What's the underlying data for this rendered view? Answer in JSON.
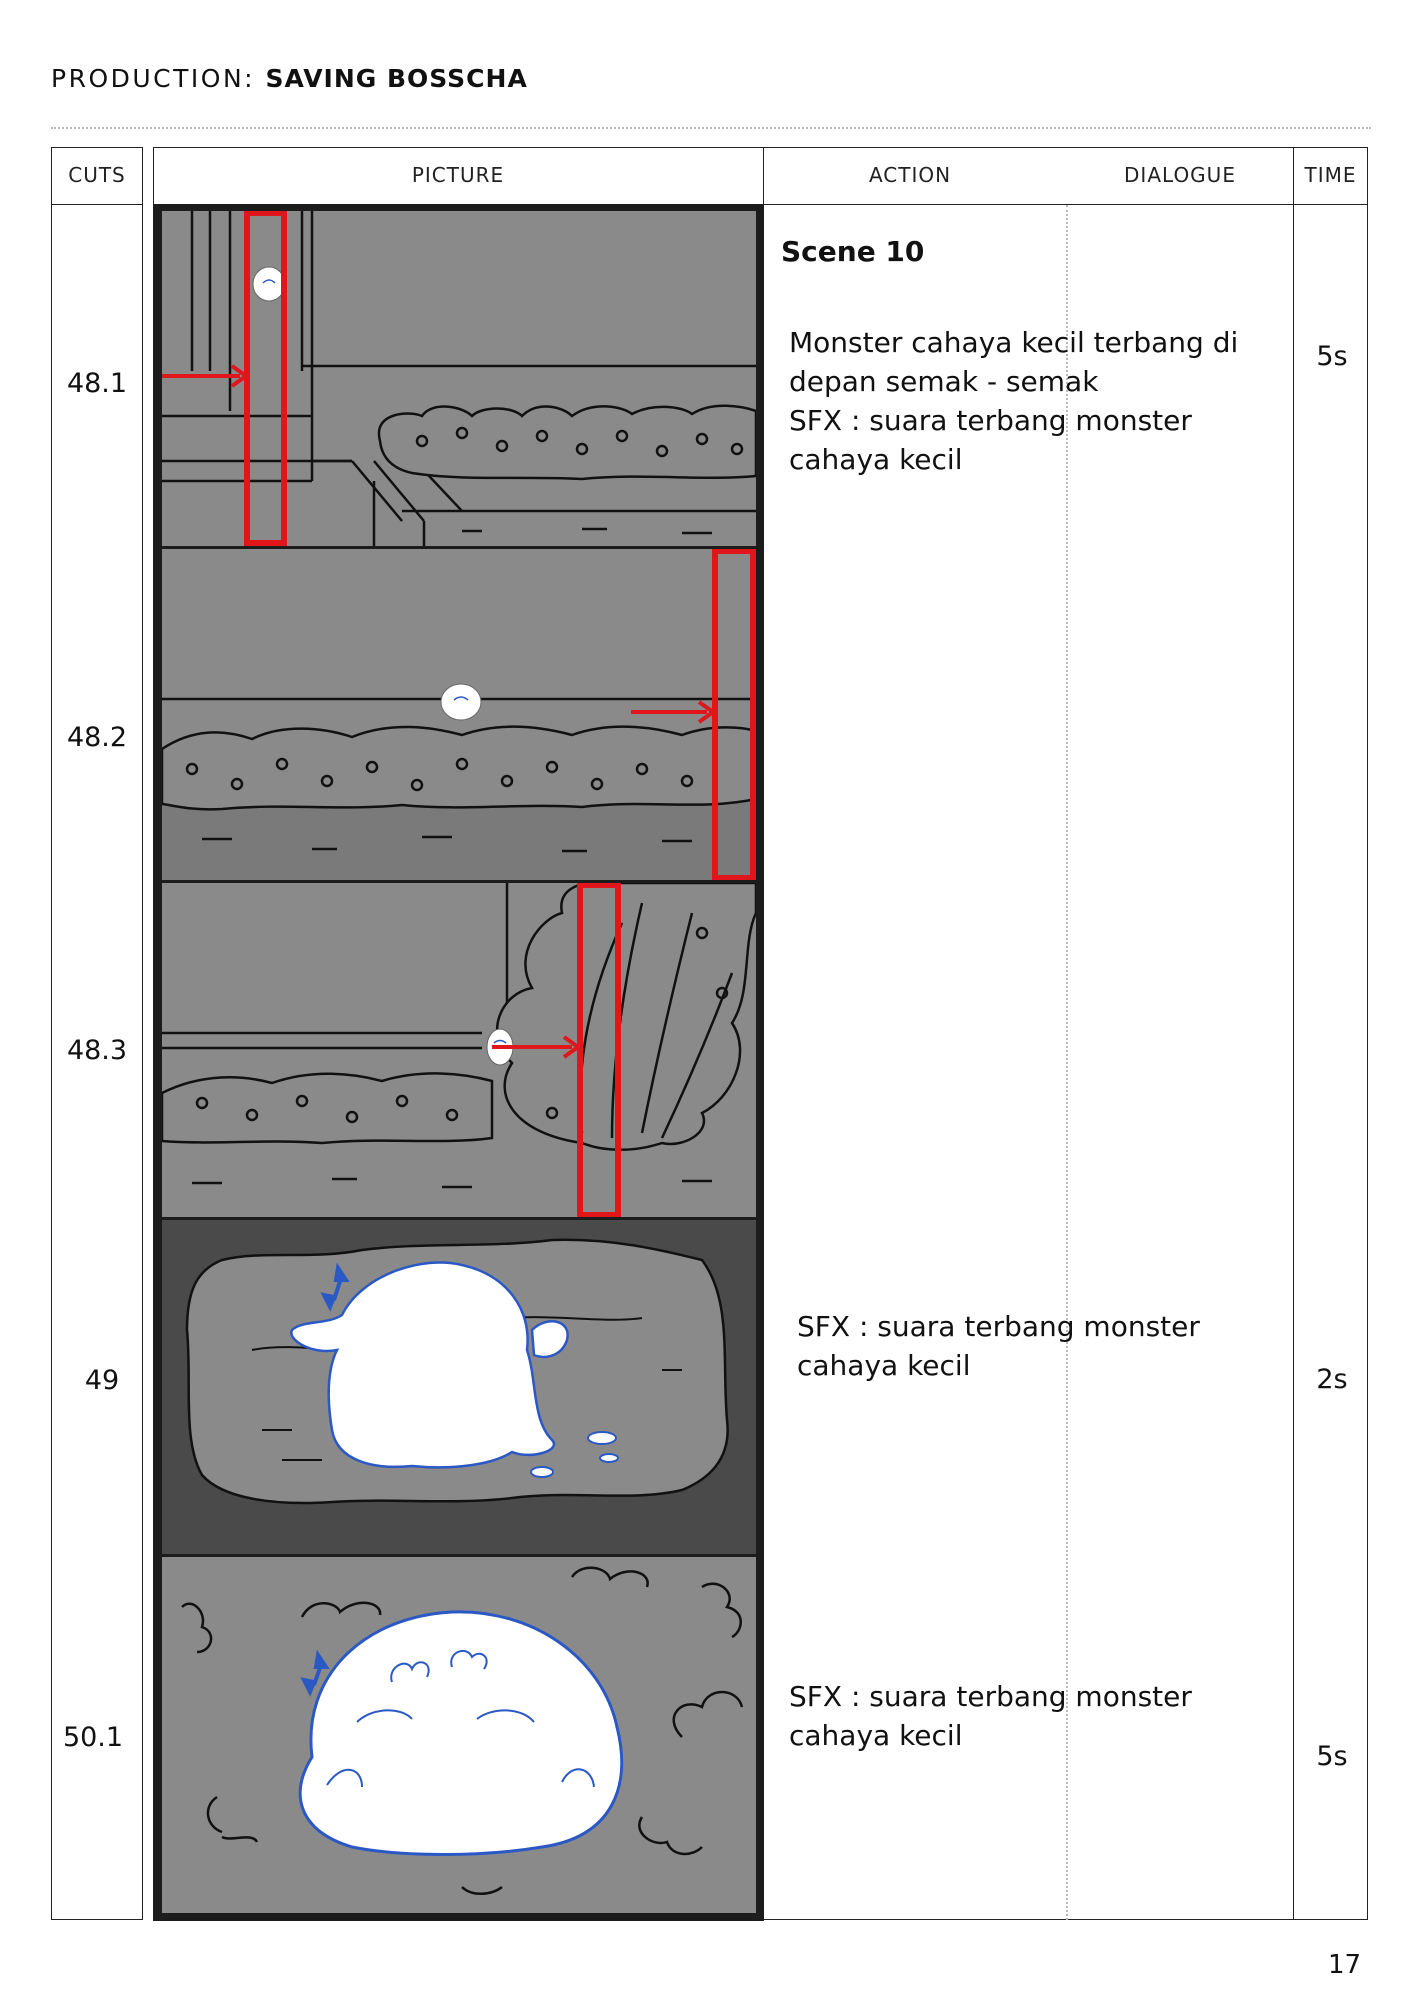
{
  "header": {
    "production_label": "PRODUCTION:",
    "production_title": "SAVING BOSSCHA"
  },
  "table": {
    "headers": {
      "cuts": "CUTS",
      "picture": "PICTURE",
      "action": "ACTION",
      "dialogue": "DIALOGUE",
      "time": "TIME"
    },
    "scene": "Scene 10",
    "cuts": [
      {
        "number": "48.1",
        "time": "5s",
        "action": [
          "Monster cahaya kecil terbang di",
          "depan semak - semak",
          "SFX : suara terbang monster",
          "cahaya kecil"
        ]
      },
      {
        "number": "48.2"
      },
      {
        "number": "48.3"
      },
      {
        "number": "49",
        "time": "2s",
        "action": [
          "SFX : suara terbang monster",
          "cahaya kecil"
        ]
      },
      {
        "number": "50.1",
        "time": "5s",
        "action": [
          "SFX : suara terbang monster",
          "cahaya kecil"
        ]
      }
    ]
  },
  "page_number": "17",
  "colors": {
    "marker_red": "#e0161a",
    "monster_outline": "#2a58c4",
    "panel_gray": "#8a8a8a",
    "panel_dark": "#4a4a4a"
  }
}
